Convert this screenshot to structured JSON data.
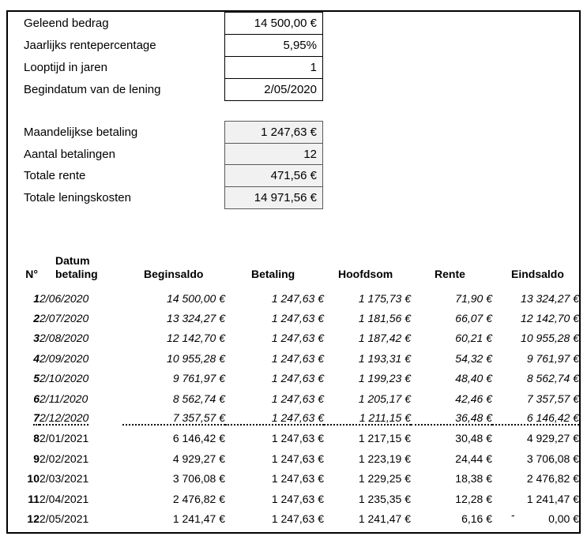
{
  "colors": {
    "text": "#000000",
    "outer_border": "#000000",
    "input_box_border": "#000000",
    "input_box_fill": "#ffffff",
    "output_box_border": "#595959",
    "output_box_fill": "#f1f1f1"
  },
  "loan_inputs": {
    "rows": [
      {
        "label": "Geleend bedrag",
        "value": "14 500,00 €"
      },
      {
        "label": "Jaarlijks rentepercentage",
        "value": "5,95%"
      },
      {
        "label": "Looptijd in jaren",
        "value": "1"
      },
      {
        "label": "Begindatum van de lening",
        "value": "2/05/2020"
      }
    ]
  },
  "loan_outputs": {
    "rows": [
      {
        "label": "Maandelijkse betaling",
        "value": "1 247,63 €"
      },
      {
        "label": "Aantal betalingen",
        "value": "12"
      },
      {
        "label": "Totale rente",
        "value": "471,56 €"
      },
      {
        "label": "Totale leningskosten",
        "value": "14 971,56 €"
      }
    ]
  },
  "schedule_table": {
    "headers": {
      "nr": "N°",
      "datum_line1": "Datum",
      "datum_line2": "betaling",
      "beginsaldo": "Beginsaldo",
      "betaling": "Betaling",
      "hoofdsom": "Hoofdsom",
      "rente": "Rente",
      "eindsaldo": "Eindsaldo"
    },
    "rows": [
      {
        "nr": "1",
        "datum": "2/06/2020",
        "beginsaldo": "14 500,00 €",
        "betaling": "1 247,63 €",
        "hoofdsom": "1 175,73 €",
        "rente": "71,90 €",
        "eindsaldo": "13 324,27 €"
      },
      {
        "nr": "2",
        "datum": "2/07/2020",
        "beginsaldo": "13 324,27 €",
        "betaling": "1 247,63 €",
        "hoofdsom": "1 181,56 €",
        "rente": "66,07 €",
        "eindsaldo": "12 142,70 €"
      },
      {
        "nr": "3",
        "datum": "2/08/2020",
        "beginsaldo": "12 142,70 €",
        "betaling": "1 247,63 €",
        "hoofdsom": "1 187,42 €",
        "rente": "60,21 €",
        "eindsaldo": "10 955,28 €"
      },
      {
        "nr": "4",
        "datum": "2/09/2020",
        "beginsaldo": "10 955,28 €",
        "betaling": "1 247,63 €",
        "hoofdsom": "1 193,31 €",
        "rente": "54,32 €",
        "eindsaldo": "9 761,97 €"
      },
      {
        "nr": "5",
        "datum": "2/10/2020",
        "beginsaldo": "9 761,97 €",
        "betaling": "1 247,63 €",
        "hoofdsom": "1 199,23 €",
        "rente": "48,40 €",
        "eindsaldo": "8 562,74 €"
      },
      {
        "nr": "6",
        "datum": "2/11/2020",
        "beginsaldo": "8 562,74 €",
        "betaling": "1 247,63 €",
        "hoofdsom": "1 205,17 €",
        "rente": "42,46 €",
        "eindsaldo": "7 357,57 €"
      },
      {
        "nr": "7",
        "datum": "2/12/2020",
        "beginsaldo": "7 357,57 €",
        "betaling": "1 247,63 €",
        "hoofdsom": "1 211,15 €",
        "rente": "36,48 €",
        "eindsaldo": "6 146,42 €"
      },
      {
        "nr": "8",
        "datum": "2/01/2021",
        "beginsaldo": "6 146,42 €",
        "betaling": "1 247,63 €",
        "hoofdsom": "1 217,15 €",
        "rente": "30,48 €",
        "eindsaldo": "4 929,27 €"
      },
      {
        "nr": "9",
        "datum": "2/02/2021",
        "beginsaldo": "4 929,27 €",
        "betaling": "1 247,63 €",
        "hoofdsom": "1 223,19 €",
        "rente": "24,44 €",
        "eindsaldo": "3 706,08 €"
      },
      {
        "nr": "10",
        "datum": "2/03/2021",
        "beginsaldo": "3 706,08 €",
        "betaling": "1 247,63 €",
        "hoofdsom": "1 229,25 €",
        "rente": "18,38 €",
        "eindsaldo": "2 476,82 €"
      },
      {
        "nr": "11",
        "datum": "2/04/2021",
        "beginsaldo": "2 476,82 €",
        "betaling": "1 247,63 €",
        "hoofdsom": "1 235,35 €",
        "rente": "12,28 €",
        "eindsaldo": "1 241,47 €"
      },
      {
        "nr": "12",
        "datum": "2/05/2021",
        "beginsaldo": "1 241,47 €",
        "betaling": "1 247,63 €",
        "hoofdsom": "1 241,47 €",
        "rente": "6,16 €",
        "eindsaldo": "0,00 €",
        "eindsaldo_dash": "-"
      }
    ]
  }
}
